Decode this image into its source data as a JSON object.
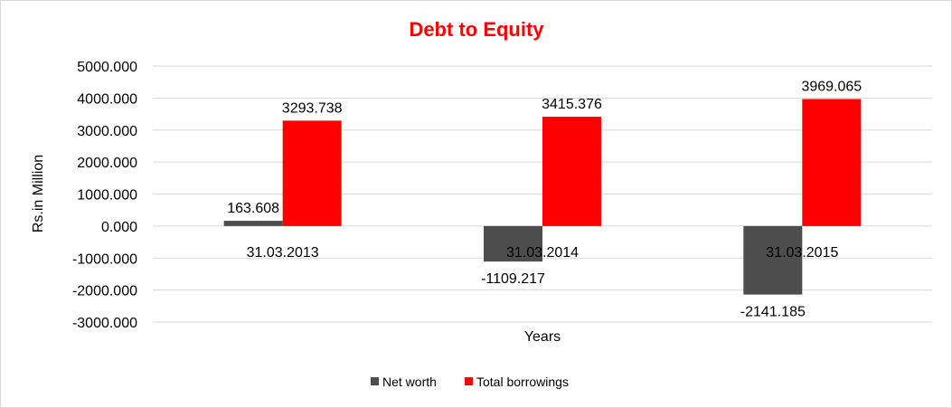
{
  "chart_data": {
    "type": "bar",
    "title": "Debt to Equity",
    "title_color": "#ff0000",
    "xlabel": "Years",
    "ylabel": "Rs.in Million",
    "categories": [
      "31.03.2013",
      "31.03.2014",
      "31.03.2015"
    ],
    "series": [
      {
        "name": "Net worth",
        "color": "#4d4d4d",
        "values": [
          163.608,
          -1109.217,
          -2141.185
        ],
        "labels": [
          "163.608",
          "-1109.217",
          "-2141.185"
        ]
      },
      {
        "name": "Total borrowings",
        "color": "#ff0000",
        "values": [
          3293.738,
          3415.376,
          3969.065
        ],
        "labels": [
          "3293.738",
          "3415.376",
          "3969.065"
        ]
      }
    ],
    "ylim": [
      -3000,
      5000
    ],
    "yticks": [
      5000,
      4000,
      3000,
      2000,
      1000,
      0,
      -1000,
      -2000,
      -3000
    ],
    "ytick_labels": [
      "5000.000",
      "4000.000",
      "3000.000",
      "2000.000",
      "1000.000",
      "0.000",
      "-1000.000",
      "-2000.000",
      "-3000.000"
    ],
    "grid": true,
    "legend_position": "bottom"
  }
}
